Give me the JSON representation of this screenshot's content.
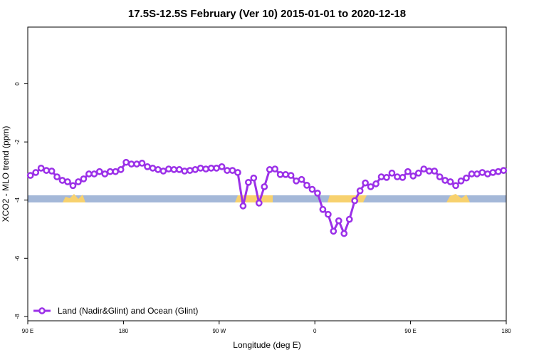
{
  "chart_data": {
    "type": "line",
    "title": "17.5S-12.5S February (Ver 10)   2015-01-01 to 2020-12-18",
    "x_label": "Longitude (deg E)",
    "y_label": "XCO2 - MLO trend (ppm)",
    "xlim": [
      90,
      540
    ],
    "xticks": [
      {
        "value": 90,
        "label": "90 E"
      },
      180,
      {
        "value": 270,
        "label": "90 W"
      },
      {
        "value": 360,
        "label": "0"
      },
      {
        "value": 450,
        "label": "90 E"
      },
      {
        "value": 540,
        "label": "180"
      }
    ],
    "ylim": [
      -8.15,
      1.95
    ],
    "yticks": [
      0,
      -2,
      -4,
      -6,
      -8
    ],
    "legend_position": "bottom-left",
    "x": [
      92.5,
      97.5,
      102.5,
      107.5,
      112.5,
      117.5,
      122.5,
      127.5,
      132.5,
      137.5,
      142.5,
      147.5,
      152.5,
      157.5,
      162.5,
      167.5,
      172.5,
      177.5,
      182.5,
      187.5,
      192.5,
      197.5,
      202.5,
      207.5,
      212.5,
      217.5,
      222.5,
      227.5,
      232.5,
      237.5,
      242.5,
      247.5,
      252.5,
      257.5,
      262.5,
      267.5,
      272.5,
      277.5,
      282.5,
      287.5,
      292.5,
      297.5,
      302.5,
      307.5,
      312.5,
      317.5,
      322.5,
      327.5,
      332.5,
      337.5,
      342.5,
      347.5,
      352.5,
      357.5,
      362.5,
      367.5,
      372.5,
      377.5,
      382.5,
      387.5,
      392.5,
      397.5,
      402.5,
      407.5,
      412.5,
      417.5,
      422.5,
      427.5,
      432.5,
      437.5,
      442.5,
      447.5,
      452.5,
      457.5,
      462.5,
      467.5,
      472.5,
      477.5,
      482.5,
      487.5,
      492.5,
      497.5,
      502.5,
      507.5,
      512.5,
      517.5,
      522.5,
      527.5,
      532.5,
      537.5
    ],
    "series": [
      {
        "name": "Land (Nadir&Glint) and Ocean (Glint)",
        "color": "#9b30e8",
        "values": [
          -3.15,
          -3.05,
          -2.9,
          -2.98,
          -3.0,
          -3.2,
          -3.32,
          -3.37,
          -3.5,
          -3.37,
          -3.27,
          -3.1,
          -3.1,
          -3.02,
          -3.1,
          -3.02,
          -3.02,
          -2.95,
          -2.7,
          -2.76,
          -2.76,
          -2.73,
          -2.85,
          -2.9,
          -2.95,
          -3.0,
          -2.93,
          -2.95,
          -2.95,
          -3.0,
          -2.98,
          -2.95,
          -2.9,
          -2.93,
          -2.9,
          -2.9,
          -2.85,
          -2.98,
          -2.98,
          -3.05,
          -4.2,
          -3.39,
          -3.24,
          -4.1,
          -3.54,
          -2.95,
          -2.93,
          -3.12,
          -3.12,
          -3.15,
          -3.34,
          -3.29,
          -3.49,
          -3.63,
          -3.76,
          -4.32,
          -4.49,
          -5.07,
          -4.71,
          -5.15,
          -4.66,
          -4.02,
          -3.68,
          -3.41,
          -3.54,
          -3.44,
          -3.2,
          -3.22,
          -3.07,
          -3.2,
          -3.22,
          -3.02,
          -3.17,
          -3.07,
          -2.93,
          -3.0,
          -3.0,
          -3.2,
          -3.32,
          -3.37,
          -3.5,
          -3.34,
          -3.24,
          -3.1,
          -3.1,
          -3.05,
          -3.1,
          -3.05,
          -3.02,
          -2.98
        ]
      }
    ]
  }
}
